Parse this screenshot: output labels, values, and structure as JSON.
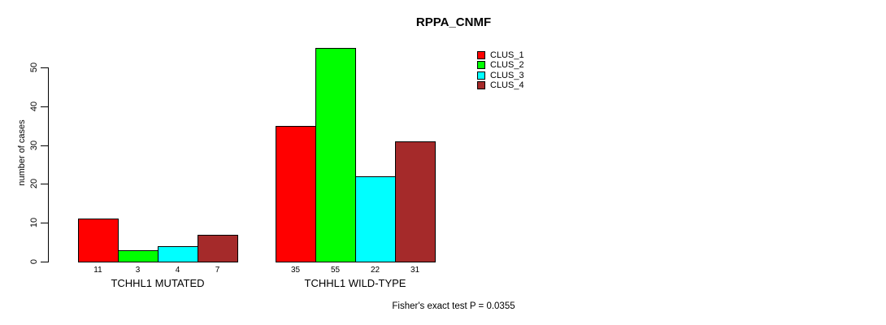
{
  "chart_data": {
    "type": "bar",
    "title": "RPPA_CNMF",
    "ylabel": "number of cases",
    "xlabel": "",
    "annotation": "Fisher's exact test P = 0.0355",
    "legend_position": "top-right",
    "grid": false,
    "yticks": [
      0,
      10,
      20,
      30,
      40,
      50
    ],
    "ylim": [
      0,
      57
    ],
    "series": [
      {
        "name": "CLUS_1",
        "color": "#ff0000"
      },
      {
        "name": "CLUS_2",
        "color": "#00ff00"
      },
      {
        "name": "CLUS_3",
        "color": "#00ffff"
      },
      {
        "name": "CLUS_4",
        "color": "#a52a2a"
      }
    ],
    "categories": [
      "TCHHL1 MUTATED",
      "TCHHL1 WILD-TYPE"
    ],
    "groups": [
      {
        "label": "TCHHL1 MUTATED",
        "values": [
          11,
          3,
          4,
          7
        ]
      },
      {
        "label": "TCHHL1 WILD-TYPE",
        "values": [
          35,
          55,
          22,
          31
        ]
      }
    ],
    "bar_value_labels_shown": true
  }
}
